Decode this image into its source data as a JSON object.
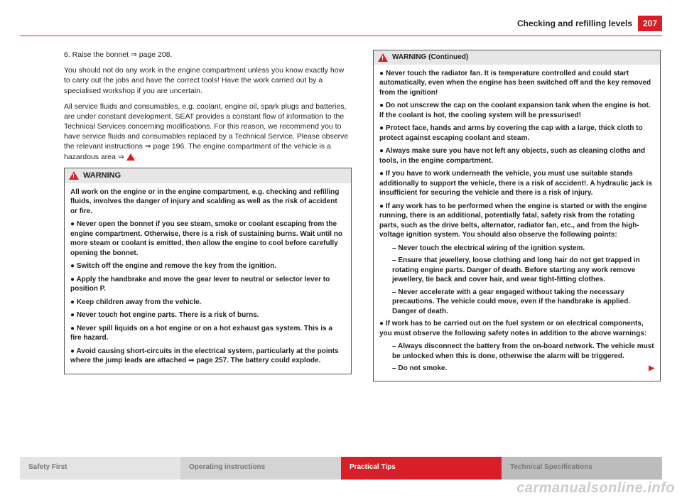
{
  "page_number": "207",
  "section_title": "Checking and refilling levels",
  "left": {
    "step": "6.  Raise the bonnet ⇒ page 208.",
    "para1": "You should not do any work in the engine compartment unless you know exactly how to carry out the jobs and have the correct tools! Have the work carried out by a specialised workshop if you are uncertain.",
    "para2": "All service fluids and consumables, e.g. coolant, engine oil, spark plugs and batteries, are under constant development. SEAT provides a constant flow of information to the Technical Services concerning modifications. For this reason, we recommend you to have service fluids and consumables replaced by a Technical Service. Please observe the relevant instructions ⇒ page 196. The engine compartment of the vehicle is a hazardous area ⇒",
    "warn_title": "WARNING",
    "w0": "All work on the engine or in the engine compartment, e.g. checking and refilling fluids, involves the danger of injury and scalding as well as the risk of accident or fire.",
    "w1": "Never open the bonnet if you see steam, smoke or coolant escaping from the engine compartment. Otherwise, there is a risk of sustaining burns. Wait until no more steam or coolant is emitted, then allow the engine to cool before carefully opening the bonnet.",
    "w2": "Switch off the engine and remove the key from the ignition.",
    "w3": "Apply the handbrake and move the gear lever to neutral or selector lever to position P.",
    "w4": "Keep children away from the vehicle.",
    "w5": "Never touch hot engine parts. There is a risk of burns.",
    "w6": "Never spill liquids on a hot engine or on a hot exhaust gas system. This is a fire hazard.",
    "w7": "Avoid causing short-circuits in the electrical system, particularly at the points where the jump leads are attached ⇒ page 257. The battery could explode."
  },
  "right": {
    "warn_title": "WARNING (Continued)",
    "r1": "Never touch the radiator fan. It is temperature controlled and could start automatically, even when the engine has been switched off and the key removed from the ignition!",
    "r2": "Do not unscrew the cap on the coolant expansion tank when the engine is hot. If the coolant is hot, the cooling system will be pressurised!",
    "r3": "Protect face, hands and arms by covering the cap with a large, thick cloth to protect against escaping coolant and steam.",
    "r4": "Always make sure you have not left any objects, such as cleaning cloths and tools, in the engine compartment.",
    "r5": "If you have to work underneath the vehicle, you must use suitable stands additionally to support the vehicle, there is a risk of accident!. A hydraulic jack is insufficient for securing the vehicle and there is a risk of injury.",
    "r6": "If any work has to be performed when the engine is started or with the engine running, there is an additional, potentially fatal, safety risk from the rotating parts, such as the drive belts, alternator, radiator fan, etc., and from the high-voltage ignition system. You should also observe the following points:",
    "r6a": "Never touch the electrical wiring of the ignition system.",
    "r6b": "Ensure that jewellery, loose clothing and long hair do not get trapped in rotating engine parts. Danger of death. Before starting any work remove jewellery, tie back and cover hair, and wear tight-fitting clothes.",
    "r6c": "Never accelerate with a gear engaged without taking the necessary precautions. The vehicle could move, even if the handbrake is applied. Danger of death.",
    "r7": "If work has to be carried out on the fuel system or on electrical components, you must observe the following safety notes in addition to the above warnings:",
    "r7a": "Always disconnect the battery from the on-board network. The vehicle must be unlocked when this is done, otherwise the alarm will be triggered.",
    "r7b": "Do not smoke."
  },
  "tabs": {
    "t1": "Safety First",
    "t2": "Operating instructions",
    "t3": "Practical Tips",
    "t4": "Technical Specifications"
  },
  "watermark": "carmanualsonline.info"
}
